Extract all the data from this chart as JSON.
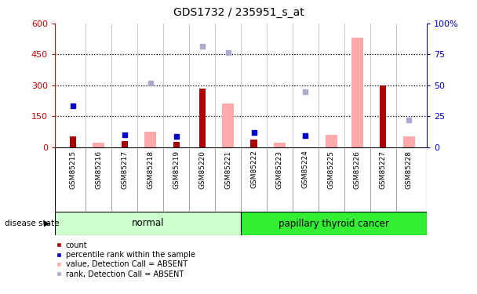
{
  "title": "GDS1732 / 235951_s_at",
  "samples": [
    "GSM85215",
    "GSM85216",
    "GSM85217",
    "GSM85218",
    "GSM85219",
    "GSM85220",
    "GSM85221",
    "GSM85222",
    "GSM85223",
    "GSM85224",
    "GSM85225",
    "GSM85226",
    "GSM85227",
    "GSM85228"
  ],
  "count_values": [
    50,
    0,
    30,
    0,
    25,
    285,
    0,
    35,
    0,
    0,
    0,
    0,
    300,
    0
  ],
  "percentile_values": [
    200,
    null,
    60,
    null,
    50,
    null,
    null,
    70,
    null,
    55,
    null,
    null,
    null,
    null
  ],
  "absent_value_bars": [
    null,
    20,
    null,
    75,
    null,
    null,
    210,
    null,
    20,
    null,
    60,
    530,
    null,
    50
  ],
  "absent_rank_points": [
    null,
    null,
    null,
    310,
    null,
    490,
    460,
    null,
    null,
    270,
    null,
    null,
    null,
    130
  ],
  "ylim_left": [
    0,
    600
  ],
  "yticks_left": [
    0,
    150,
    300,
    450,
    600
  ],
  "yticks_right": [
    0,
    25,
    50,
    75,
    100
  ],
  "normal_label": "normal",
  "cancer_label": "papillary thyroid cancer",
  "disease_state_label": "disease state",
  "count_color": "#aa0000",
  "percentile_color": "#0000cc",
  "absent_value_color": "#ffaaaa",
  "absent_rank_color": "#aaaacc",
  "normal_bg_color": "#ccffcc",
  "cancer_bg_color": "#33ee33",
  "plot_bg_color": "#ffffff",
  "sample_area_bg": "#d8d8d8",
  "left_axis_color": "#cc0000",
  "right_axis_color": "#0000cc",
  "count_bar_width": 0.25,
  "absent_bar_width": 0.45,
  "marker_size": 5
}
